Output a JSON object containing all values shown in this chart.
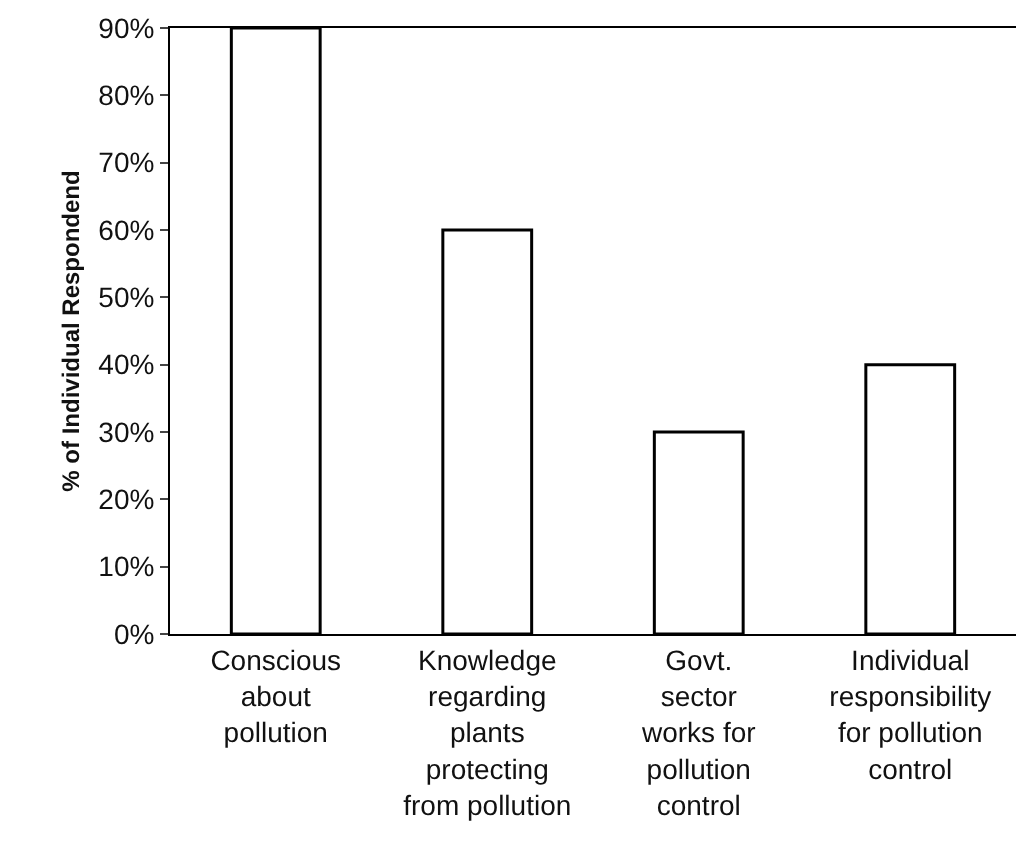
{
  "chart_data": {
    "type": "bar",
    "ylabel": "% of Individual Respondend",
    "categories": [
      "Conscious\nabout\npollution",
      "Knowledge\nregarding\nplants\nprotecting\nfrom pollution",
      "Govt.\nsector\nworks for\npollution\ncontrol",
      "Individual\nresponsibility\nfor pollution\ncontrol"
    ],
    "values": [
      90,
      60,
      30,
      40
    ],
    "color": "#ffffff",
    "ylim": [
      0,
      90
    ],
    "yticks": [
      {
        "value": 0,
        "label": "0%"
      },
      {
        "value": 10,
        "label": "10%"
      },
      {
        "value": 20,
        "label": "20%"
      },
      {
        "value": 30,
        "label": "30%"
      },
      {
        "value": 40,
        "label": "40%"
      },
      {
        "value": 50,
        "label": "50%"
      },
      {
        "value": 60,
        "label": "60%"
      },
      {
        "value": 70,
        "label": "70%"
      },
      {
        "value": 80,
        "label": "80%"
      },
      {
        "value": 90,
        "label": "90%"
      }
    ],
    "grid": false
  }
}
